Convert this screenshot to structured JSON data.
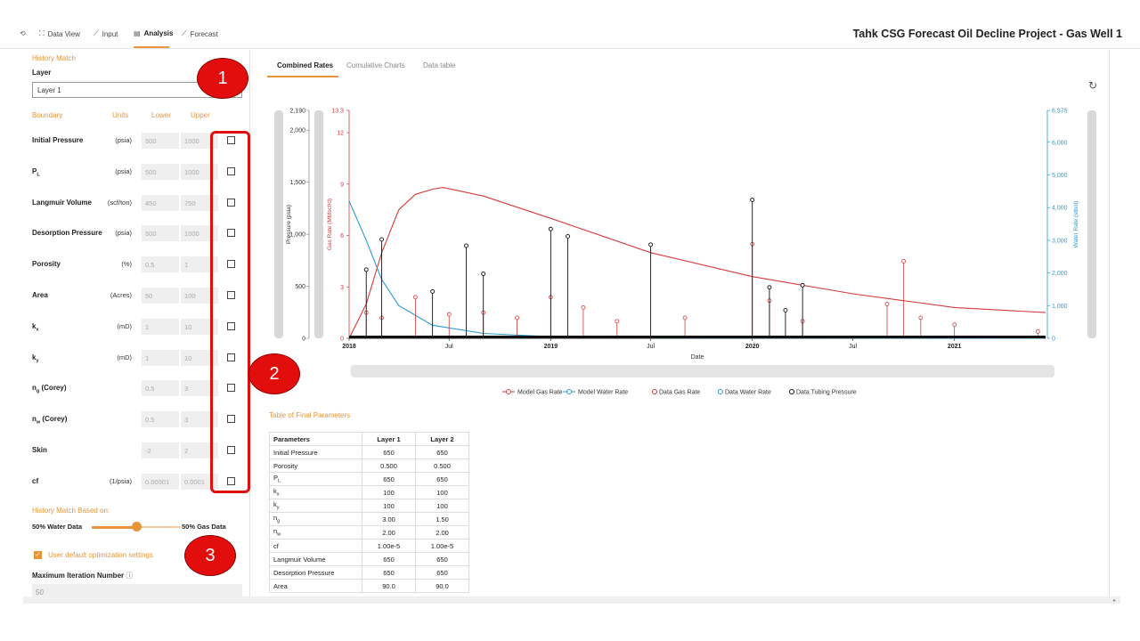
{
  "nav": {
    "tabs": [
      {
        "label": "Data View",
        "icon": "data-view-icon"
      },
      {
        "label": "Input",
        "icon": "chart-line-icon"
      },
      {
        "label": "Analysis",
        "icon": "analysis-icon",
        "active": true
      },
      {
        "label": "Forecast",
        "icon": "chart-line-icon"
      }
    ],
    "title": "Tahk CSG Forecast Oil Decline Project - Gas Well 1"
  },
  "left": {
    "section_title": "History Match",
    "layer_label": "Layer",
    "layer_value": "Layer 1",
    "headers": {
      "boundary": "Boundary",
      "units": "Units",
      "lower": "Lower",
      "upper": "Upper"
    },
    "params": [
      {
        "name": "Initial Pressure",
        "units": "(psia)",
        "lower": "500",
        "upper": "1000"
      },
      {
        "name": "P",
        "sub": "L",
        "units": "(psia)",
        "lower": "500",
        "upper": "1000"
      },
      {
        "name": "Langmuir Volume",
        "units": "(scf/ton)",
        "lower": "450",
        "upper": "750"
      },
      {
        "name": "Desorption Pressure",
        "units": "(psia)",
        "lower": "500",
        "upper": "1000"
      },
      {
        "name": "Porosity",
        "units": "(%)",
        "lower": "0.5",
        "upper": "1"
      },
      {
        "name": "Area",
        "units": "(Acres)",
        "lower": "50",
        "upper": "100"
      },
      {
        "name": "k",
        "sub": "x",
        "units": "(mD)",
        "lower": "1",
        "upper": "10"
      },
      {
        "name": "k",
        "sub": "y",
        "units": "(mD)",
        "lower": "1",
        "upper": "10"
      },
      {
        "name": "n",
        "sub": "g",
        "suffix": " (Corey)",
        "units": "",
        "lower": "0.5",
        "upper": "3"
      },
      {
        "name": "n",
        "sub": "w",
        "suffix": " (Corey)",
        "units": "",
        "lower": "0.5",
        "upper": "3"
      },
      {
        "name": "Skin",
        "units": "",
        "lower": "-2",
        "upper": "2"
      },
      {
        "name": "cf",
        "units": "(1/psia)",
        "lower": "0.00001",
        "upper": "0.0001"
      }
    ],
    "hm_based_on": "History Match Based on:",
    "slider_left": "50% Water Data",
    "slider_right": "50% Gas Data",
    "slider_value": 0.5,
    "opt_label": "User default optimization settings",
    "maxiter_label": "Maximum Iteration Number",
    "maxiter_value": "50"
  },
  "right": {
    "tabs": [
      "Combined Rates",
      "Cumulative Charts",
      "Data table"
    ],
    "params_title": "Table of Final Parameters",
    "table": {
      "headers": [
        "Parameters",
        "Layer 1",
        "Layer 2"
      ],
      "rows": [
        {
          "name": "Initial Pressure",
          "l1": "650",
          "l2": "650"
        },
        {
          "name": "Porosity",
          "l1": "0.500",
          "l2": "0.500"
        },
        {
          "name": "P",
          "sub": "L",
          "l1": "650",
          "l2": "650"
        },
        {
          "name": "k",
          "sub": "x",
          "l1": "100",
          "l2": "100"
        },
        {
          "name": "k",
          "sub": "y",
          "l1": "100",
          "l2": "100"
        },
        {
          "name": "n",
          "sub": "g",
          "l1": "3.00",
          "l2": "1.50"
        },
        {
          "name": "n",
          "sub": "w",
          "l1": "2.00",
          "l2": "2.00"
        },
        {
          "name": "cf",
          "l1": "1.00e-5",
          "l2": "1.00e-5"
        },
        {
          "name": "Langmuir Volume",
          "l1": "650",
          "l2": "650"
        },
        {
          "name": "Desorption Pressure",
          "l1": "650",
          "l2": "650"
        },
        {
          "name": "Area",
          "l1": "90.0",
          "l2": "90.0"
        }
      ]
    }
  },
  "callouts": [
    "1",
    "2",
    "3"
  ],
  "colors": {
    "accent": "#e8953a",
    "gas": "#d63a3a",
    "water": "#2a9bd6",
    "tubing": "#111111",
    "callout": "#e20d0d"
  },
  "chart_data": {
    "type": "line",
    "xlabel": "Date",
    "x_ticks": [
      "2018",
      "Jul",
      "2019",
      "Jul",
      "2020",
      "Jul",
      "2021"
    ],
    "x_range": [
      "2018-01-01",
      "2021-06-15"
    ],
    "pressure_axis": {
      "label": "Pressure (psia)",
      "ticks": [
        "2,190",
        "2,000",
        "1,500",
        "1,000",
        "500",
        "0"
      ]
    },
    "gas_axis": {
      "label": "Gas Rate (MMscf/d)",
      "ticks": [
        "13.3",
        "12",
        "9",
        "6",
        "3",
        "0"
      ],
      "ylim": [
        0,
        13.3
      ]
    },
    "water_axis": {
      "label": "Water Rate (stb/d)",
      "ticks": [
        "6,975",
        "6,000",
        "5,000",
        "4,000",
        "3,000",
        "2,000",
        "1,000",
        "0"
      ],
      "ylim": [
        0,
        6975
      ]
    },
    "legend": [
      "Model Gas Rate",
      "Model Water Rate",
      "Data Gas Rate",
      "Data Water Rate",
      "Data Tubing Pressure"
    ],
    "series": [
      {
        "name": "Model Gas Rate",
        "points": [
          [
            "2018-01-01",
            0
          ],
          [
            "2018-02-01",
            2.0
          ],
          [
            "2018-03-01",
            5.0
          ],
          [
            "2018-04-01",
            7.5
          ],
          [
            "2018-05-01",
            8.4
          ],
          [
            "2018-06-01",
            8.7
          ],
          [
            "2018-06-20",
            8.8
          ],
          [
            "2018-09-01",
            8.3
          ],
          [
            "2019-01-01",
            7.0
          ],
          [
            "2019-07-01",
            5.0
          ],
          [
            "2020-01-01",
            3.6
          ],
          [
            "2020-07-01",
            2.6
          ],
          [
            "2021-01-01",
            1.8
          ],
          [
            "2021-06-15",
            1.5
          ]
        ]
      },
      {
        "name": "Model Water Rate",
        "points": [
          [
            "2018-01-01",
            4200
          ],
          [
            "2018-02-01",
            3000
          ],
          [
            "2018-03-01",
            1800
          ],
          [
            "2018-04-01",
            1000
          ],
          [
            "2018-06-01",
            400
          ],
          [
            "2018-09-01",
            150
          ],
          [
            "2019-01-01",
            50
          ],
          [
            "2019-07-01",
            10
          ],
          [
            "2021-06-15",
            0
          ]
        ]
      },
      {
        "name": "Data Gas Rate",
        "points": [
          [
            "2018-02-01",
            1.5
          ],
          [
            "2018-03-01",
            1.2
          ],
          [
            "2018-05-01",
            2.4
          ],
          [
            "2018-07-01",
            1.4
          ],
          [
            "2018-09-01",
            1.5
          ],
          [
            "2018-11-01",
            1.2
          ],
          [
            "2019-01-01",
            2.4
          ],
          [
            "2019-03-01",
            1.8
          ],
          [
            "2019-05-01",
            1.0
          ],
          [
            "2019-09-01",
            1.2
          ],
          [
            "2020-01-01",
            5.5
          ],
          [
            "2020-02-01",
            2.2
          ],
          [
            "2020-04-01",
            1.0
          ],
          [
            "2020-09-01",
            2.0
          ],
          [
            "2020-10-01",
            4.5
          ],
          [
            "2020-11-01",
            1.2
          ],
          [
            "2021-01-01",
            0.8
          ],
          [
            "2021-06-01",
            0.4
          ]
        ]
      },
      {
        "name": "Data Tubing Pressure",
        "points": [
          [
            "2018-02-01",
            660
          ],
          [
            "2018-03-01",
            950
          ],
          [
            "2018-06-01",
            450
          ],
          [
            "2018-08-01",
            890
          ],
          [
            "2018-09-01",
            620
          ],
          [
            "2019-01-01",
            1050
          ],
          [
            "2019-02-01",
            980
          ],
          [
            "2019-07-01",
            900
          ],
          [
            "2020-01-01",
            1330
          ],
          [
            "2020-02-01",
            490
          ],
          [
            "2020-03-01",
            270
          ],
          [
            "2020-04-01",
            510
          ]
        ]
      }
    ]
  }
}
